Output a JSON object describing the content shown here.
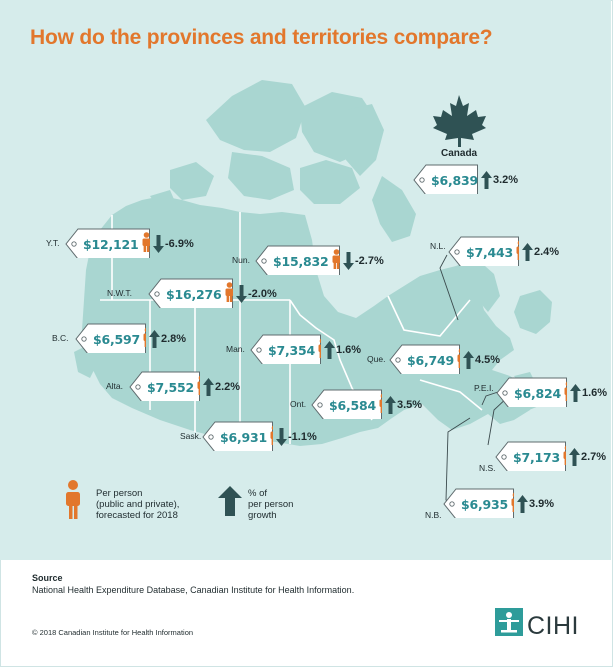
{
  "title": "How do the provinces and territories compare?",
  "canada": {
    "label": "Canada",
    "amount": "$6,839",
    "growth": "3.2%",
    "direction": "up"
  },
  "regions": [
    {
      "id": "yt",
      "label": "Y.T.",
      "amount": "$12,121",
      "growth": "-6.9%",
      "direction": "down"
    },
    {
      "id": "nun",
      "label": "Nun.",
      "amount": "$15,832",
      "growth": "-2.7%",
      "direction": "down"
    },
    {
      "id": "nwt",
      "label": "N.W.T.",
      "amount": "$16,276",
      "growth": "-2.0%",
      "direction": "down"
    },
    {
      "id": "bc",
      "label": "B.C.",
      "amount": "$6,597",
      "growth": "2.8%",
      "direction": "up"
    },
    {
      "id": "man",
      "label": "Man.",
      "amount": "$7,354",
      "growth": "1.6%",
      "direction": "up"
    },
    {
      "id": "alta",
      "label": "Alta.",
      "amount": "$7,552",
      "growth": "2.2%",
      "direction": "up"
    },
    {
      "id": "ont",
      "label": "Ont.",
      "amount": "$6,584",
      "growth": "3.5%",
      "direction": "up"
    },
    {
      "id": "sask",
      "label": "Sask.",
      "amount": "$6,931",
      "growth": "-1.1%",
      "direction": "down"
    },
    {
      "id": "nl",
      "label": "N.L.",
      "amount": "$7,443",
      "growth": "2.4%",
      "direction": "up"
    },
    {
      "id": "que",
      "label": "Que.",
      "amount": "$6,749",
      "growth": "4.5%",
      "direction": "up"
    },
    {
      "id": "pei",
      "label": "P.E.I.",
      "amount": "$6,824",
      "growth": "1.6%",
      "direction": "up"
    },
    {
      "id": "ns",
      "label": "N.S.",
      "amount": "$7,173",
      "growth": "2.7%",
      "direction": "up"
    },
    {
      "id": "nb",
      "label": "N.B.",
      "amount": "$6,935",
      "growth": "3.9%",
      "direction": "up"
    }
  ],
  "legend": {
    "person_text": [
      "Per person",
      "(public and private),",
      "forecasted for 2018"
    ],
    "growth_text": [
      "% of",
      "per person",
      "growth"
    ]
  },
  "source_heading": "Source",
  "source_text": "National Health Expenditure Database, Canadian Institute for Health Information.",
  "copyright": "© 2018 Canadian Institute for Health Information",
  "logo_text": "CIHI",
  "colors": {
    "accent": "#e2772c",
    "amount": "#2a8a91",
    "map": "#a9d6d1",
    "background": "#d6eceb",
    "dark": "#2f5254"
  }
}
